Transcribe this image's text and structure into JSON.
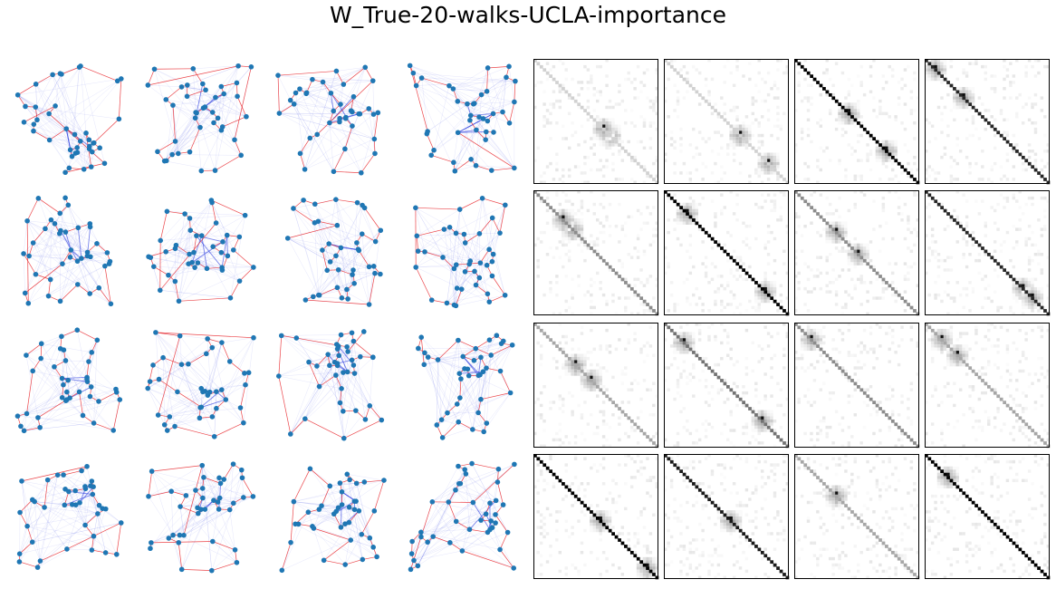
{
  "title": "W_True-20-walks-UCLA-importance",
  "colors": {
    "node": "#1f77b4",
    "edge_walk": "#e8252a",
    "edge_weighted": "#2233dd",
    "matrix_frame": "#000000"
  },
  "grid": {
    "rows": 4,
    "graph_columns": 4,
    "matrix_columns": 4
  }
}
